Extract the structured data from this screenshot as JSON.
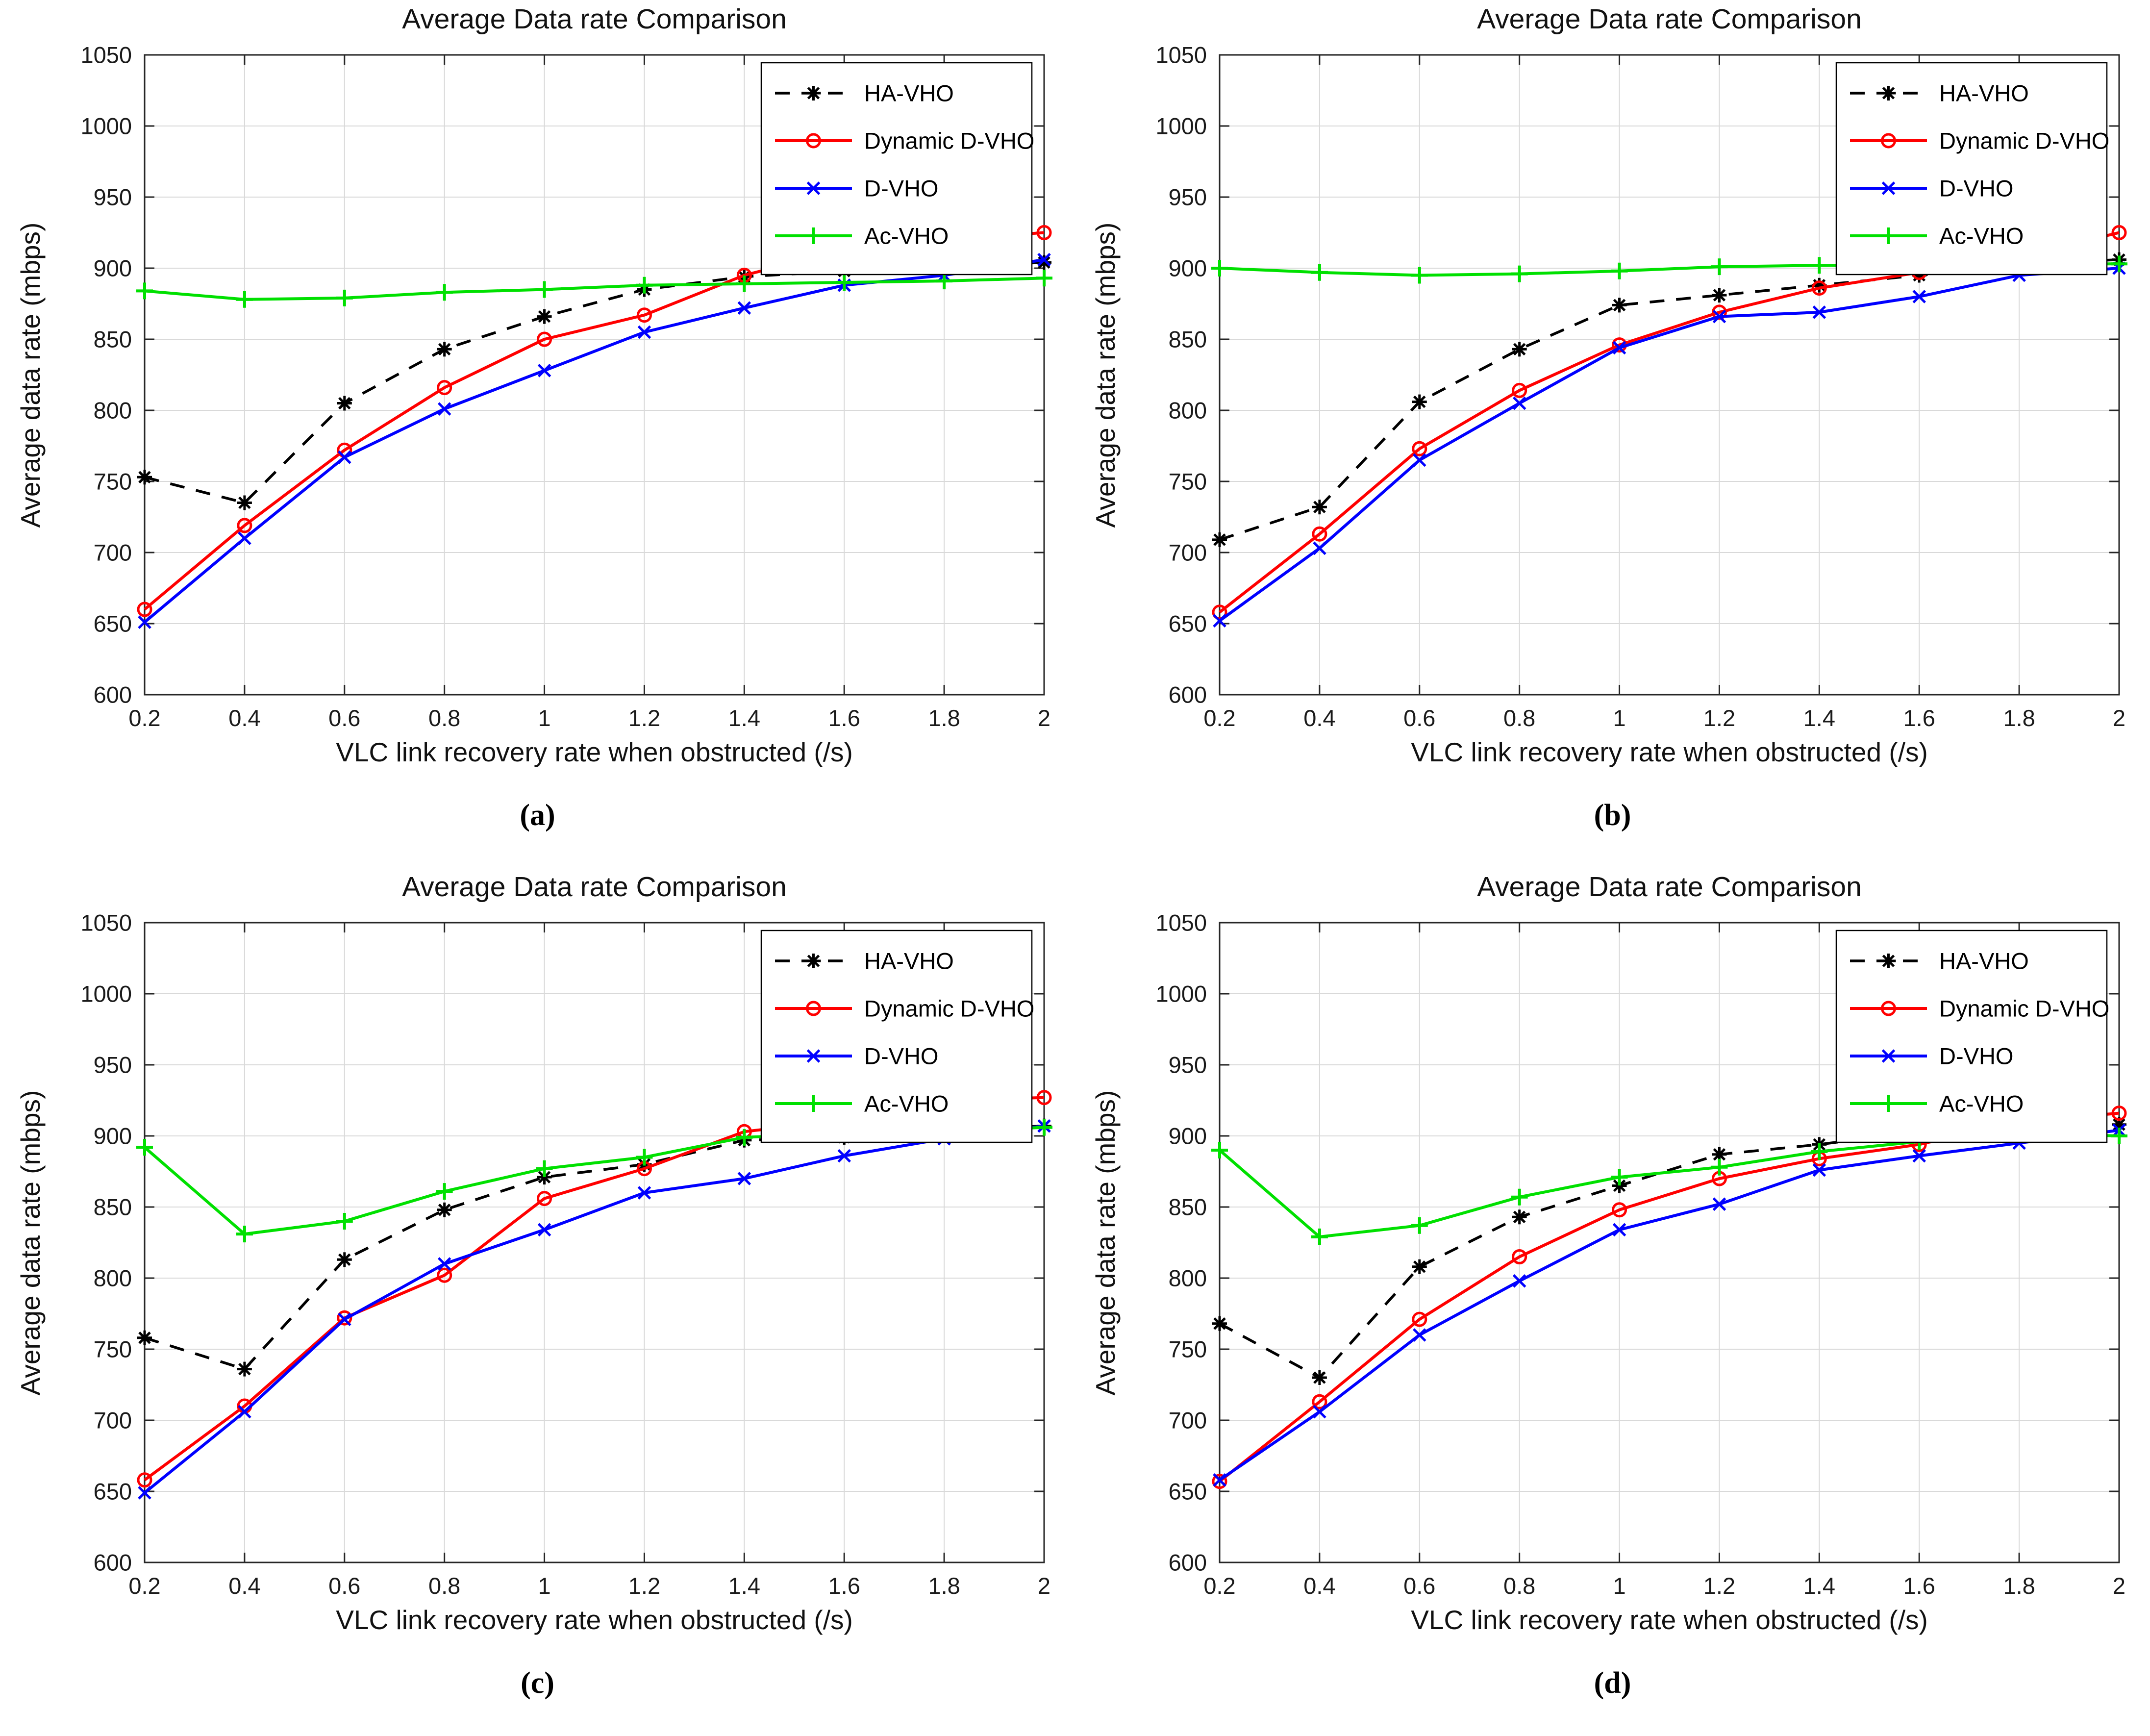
{
  "figure": {
    "background": "#ffffff",
    "grid_color": "#d9d9d9",
    "axis_color": "#262626",
    "subplot_captions": [
      "(a)",
      "(b)",
      "(c)",
      "(d)"
    ]
  },
  "legend": {
    "position": "top-right",
    "entries": [
      {
        "label": "HA-VHO",
        "color": "#000000",
        "line": "dashed",
        "marker": "asterisk"
      },
      {
        "label": "Dynamic D-VHO",
        "color": "#ff0000",
        "line": "solid",
        "marker": "circle"
      },
      {
        "label": "D-VHO",
        "color": "#0000ff",
        "line": "solid",
        "marker": "x"
      },
      {
        "label": "Ac-VHO",
        "color": "#00e000",
        "line": "solid",
        "marker": "plus"
      }
    ]
  },
  "chart_data": [
    {
      "type": "line",
      "title": "Average Data rate Comparison",
      "xlabel": "VLC link recovery rate when obstructed  (/s)",
      "ylabel": "Average data rate  (mbps)",
      "caption": "(a)",
      "x": [
        0.2,
        0.4,
        0.6,
        0.8,
        1.0,
        1.2,
        1.4,
        1.6,
        1.8,
        2.0
      ],
      "xtick_labels": [
        "0.2",
        "0.4",
        "0.6",
        "0.8",
        "1",
        "1.2",
        "1.4",
        "1.6",
        "1.8",
        "2"
      ],
      "yticks": [
        600,
        650,
        700,
        750,
        800,
        850,
        900,
        950,
        1000,
        1050
      ],
      "xlim": [
        0.2,
        2.0
      ],
      "ylim": [
        600,
        1050
      ],
      "grid": true,
      "legend_position": "top-right",
      "series": [
        {
          "name": "HA-VHO",
          "color": "#000000",
          "line": "dashed",
          "marker": "asterisk",
          "values": [
            753,
            735,
            805,
            843,
            866,
            885,
            894,
            898,
            901,
            904
          ]
        },
        {
          "name": "Dynamic D-VHO",
          "color": "#ff0000",
          "line": "solid",
          "marker": "circle",
          "values": [
            660,
            719,
            772,
            816,
            850,
            867,
            895,
            913,
            920,
            925
          ]
        },
        {
          "name": "D-VHO",
          "color": "#0000ff",
          "line": "solid",
          "marker": "x",
          "values": [
            651,
            710,
            767,
            801,
            828,
            855,
            872,
            888,
            895,
            906
          ]
        },
        {
          "name": "Ac-VHO",
          "color": "#00e000",
          "line": "solid",
          "marker": "plus",
          "values": [
            884,
            878,
            879,
            883,
            885,
            888,
            889,
            890,
            891,
            893
          ]
        }
      ]
    },
    {
      "type": "line",
      "title": "Average Data rate Comparison",
      "xlabel": "VLC link recovery rate when obstructed  (/s)",
      "ylabel": "Average data rate  (mbps)",
      "caption": "(b)",
      "x": [
        0.2,
        0.4,
        0.6,
        0.8,
        1.0,
        1.2,
        1.4,
        1.6,
        1.8,
        2.0
      ],
      "xtick_labels": [
        "0.2",
        "0.4",
        "0.6",
        "0.8",
        "1",
        "1.2",
        "1.4",
        "1.6",
        "1.8",
        "2"
      ],
      "yticks": [
        600,
        650,
        700,
        750,
        800,
        850,
        900,
        950,
        1000,
        1050
      ],
      "xlim": [
        0.2,
        2.0
      ],
      "ylim": [
        600,
        1050
      ],
      "grid": true,
      "legend_position": "top-right",
      "series": [
        {
          "name": "HA-VHO",
          "color": "#000000",
          "line": "dashed",
          "marker": "asterisk",
          "values": [
            709,
            732,
            806,
            843,
            874,
            881,
            888,
            895,
            903,
            906
          ]
        },
        {
          "name": "Dynamic D-VHO",
          "color": "#ff0000",
          "line": "solid",
          "marker": "circle",
          "values": [
            658,
            713,
            773,
            814,
            846,
            869,
            886,
            897,
            908,
            925
          ]
        },
        {
          "name": "D-VHO",
          "color": "#0000ff",
          "line": "solid",
          "marker": "x",
          "values": [
            652,
            703,
            765,
            805,
            844,
            866,
            869,
            880,
            895,
            900
          ]
        },
        {
          "name": "Ac-VHO",
          "color": "#00e000",
          "line": "solid",
          "marker": "plus",
          "values": [
            900,
            897,
            895,
            896,
            898,
            901,
            902,
            902,
            903,
            903
          ]
        }
      ]
    },
    {
      "type": "line",
      "title": "Average Data rate Comparison",
      "xlabel": "VLC link recovery rate when obstructed  (/s)",
      "ylabel": "Average data rate  (mbps)",
      "caption": "(c)",
      "x": [
        0.2,
        0.4,
        0.6,
        0.8,
        1.0,
        1.2,
        1.4,
        1.6,
        1.8,
        2.0
      ],
      "xtick_labels": [
        "0.2",
        "0.4",
        "0.6",
        "0.8",
        "1",
        "1.2",
        "1.4",
        "1.6",
        "1.8",
        "2"
      ],
      "yticks": [
        600,
        650,
        700,
        750,
        800,
        850,
        900,
        950,
        1000,
        1050
      ],
      "xlim": [
        0.2,
        2.0
      ],
      "ylim": [
        600,
        1050
      ],
      "grid": true,
      "legend_position": "top-right",
      "series": [
        {
          "name": "HA-VHO",
          "color": "#000000",
          "line": "dashed",
          "marker": "asterisk",
          "values": [
            758,
            736,
            813,
            848,
            871,
            880,
            897,
            899,
            904,
            907
          ]
        },
        {
          "name": "Dynamic D-VHO",
          "color": "#ff0000",
          "line": "solid",
          "marker": "circle",
          "values": [
            658,
            710,
            772,
            802,
            856,
            877,
            903,
            911,
            925,
            927
          ]
        },
        {
          "name": "D-VHO",
          "color": "#0000ff",
          "line": "solid",
          "marker": "x",
          "values": [
            649,
            706,
            771,
            810,
            834,
            860,
            870,
            886,
            898,
            907
          ]
        },
        {
          "name": "Ac-VHO",
          "color": "#00e000",
          "line": "solid",
          "marker": "plus",
          "values": [
            892,
            831,
            840,
            861,
            877,
            885,
            899,
            902,
            903,
            906
          ]
        }
      ]
    },
    {
      "type": "line",
      "title": "Average Data rate Comparison",
      "xlabel": "VLC link recovery rate when obstructed  (/s)",
      "ylabel": "Average data rate  (mbps)",
      "caption": "(d)",
      "x": [
        0.2,
        0.4,
        0.6,
        0.8,
        1.0,
        1.2,
        1.4,
        1.6,
        1.8,
        2.0
      ],
      "xtick_labels": [
        "0.2",
        "0.4",
        "0.6",
        "0.8",
        "1",
        "1.2",
        "1.4",
        "1.6",
        "1.8",
        "2"
      ],
      "yticks": [
        600,
        650,
        700,
        750,
        800,
        850,
        900,
        950,
        1000,
        1050
      ],
      "xlim": [
        0.2,
        2.0
      ],
      "ylim": [
        600,
        1050
      ],
      "grid": true,
      "legend_position": "top-right",
      "series": [
        {
          "name": "HA-VHO",
          "color": "#000000",
          "line": "dashed",
          "marker": "asterisk",
          "values": [
            768,
            730,
            808,
            843,
            865,
            887,
            894,
            903,
            905,
            908
          ]
        },
        {
          "name": "Dynamic D-VHO",
          "color": "#ff0000",
          "line": "solid",
          "marker": "circle",
          "values": [
            657,
            713,
            771,
            815,
            848,
            870,
            884,
            894,
            910,
            916
          ]
        },
        {
          "name": "D-VHO",
          "color": "#0000ff",
          "line": "solid",
          "marker": "x",
          "values": [
            658,
            706,
            760,
            798,
            834,
            852,
            876,
            886,
            895,
            904
          ]
        },
        {
          "name": "Ac-VHO",
          "color": "#00e000",
          "line": "solid",
          "marker": "plus",
          "values": [
            890,
            829,
            837,
            857,
            871,
            878,
            889,
            896,
            902,
            900
          ]
        }
      ]
    }
  ]
}
